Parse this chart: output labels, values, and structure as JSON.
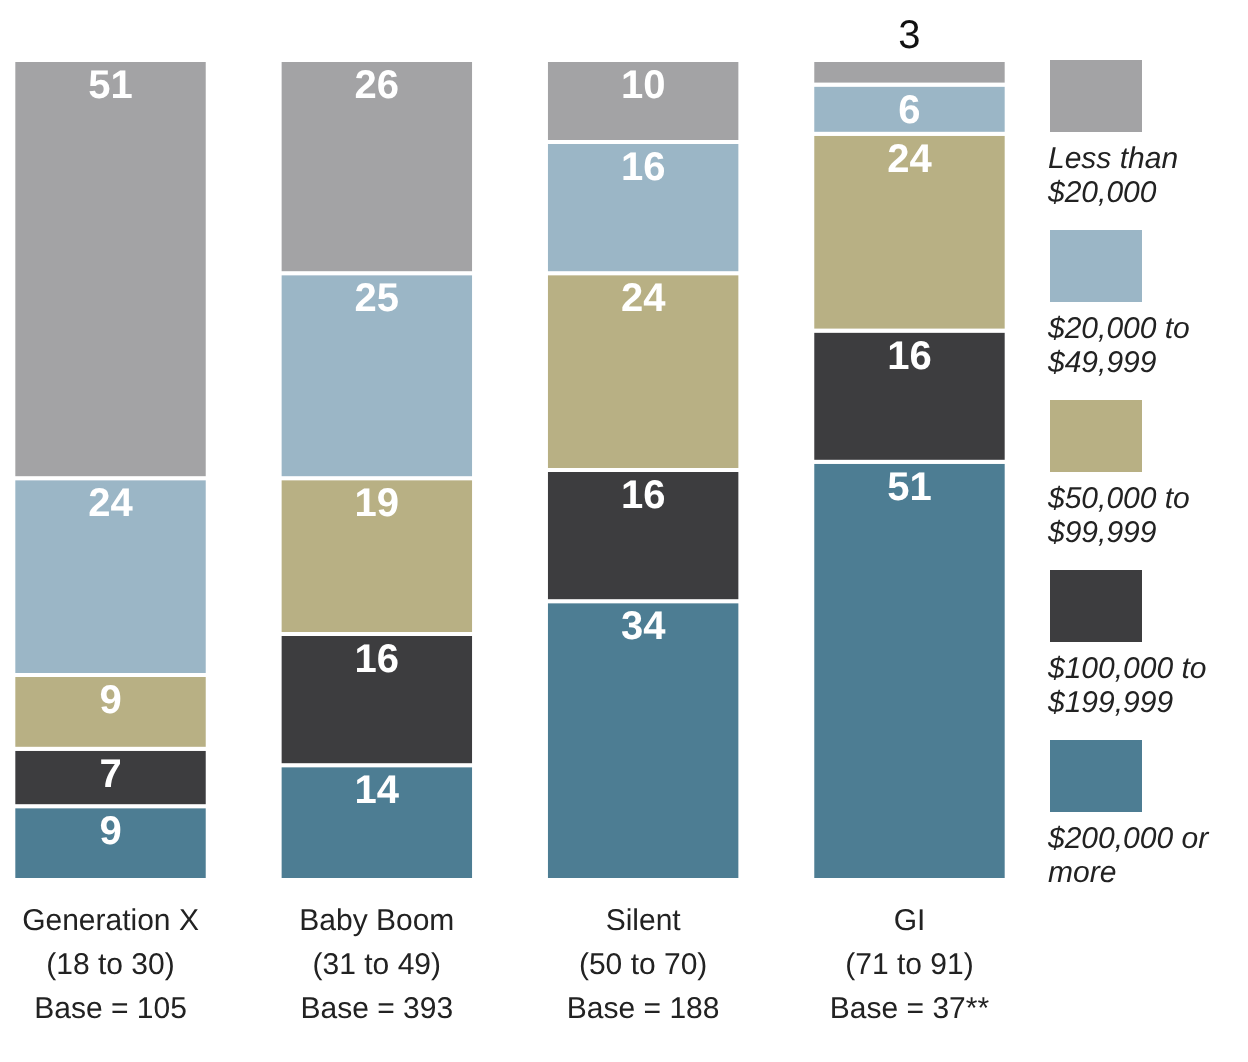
{
  "chart_data": {
    "type": "bar",
    "stacked": true,
    "data_labels": true,
    "legend": "right",
    "tick_labels": "x",
    "ylim": [
      0,
      100
    ],
    "categories": [
      "Generation X\n(18 to 30)\nBase = 105",
      "Baby Boom\n(31 to 49)\nBase = 393",
      "Silent\n(50 to 70)\nBase = 188",
      "GI\n(71 to 91)\nBase = 37**"
    ],
    "series": [
      {
        "name": "$200,000 or more",
        "color": "#4d7d93",
        "values": [
          9,
          14,
          34,
          51
        ]
      },
      {
        "name": "$100,000 to $199,999",
        "color": "#3d3d3f",
        "values": [
          7,
          16,
          16,
          16
        ]
      },
      {
        "name": "$50,000 to $99,999",
        "color": "#b8b084",
        "values": [
          9,
          19,
          24,
          24
        ]
      },
      {
        "name": "$20,000 to $49,999",
        "color": "#9bb6c6",
        "values": [
          24,
          25,
          16,
          6
        ]
      },
      {
        "name": "Less than $20,000",
        "color": "#a3a3a5",
        "values": [
          51,
          26,
          10,
          3
        ]
      }
    ]
  }
}
